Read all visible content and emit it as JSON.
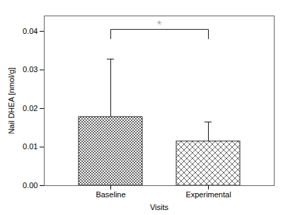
{
  "chart_data": {
    "type": "bar",
    "categories": [
      "Baseline",
      "Experimental"
    ],
    "values": [
      0.0178,
      0.0115
    ],
    "errors_up": [
      0.015,
      0.005
    ],
    "xlabel": "Visits",
    "ylabel": "Nail DHEA [nmol/g]",
    "ylim": [
      0,
      0.044
    ],
    "yticks": [
      {
        "value": 0,
        "label": "0.00"
      },
      0.01,
      0.02,
      0.03,
      0.04
    ],
    "color": "#ffffff",
    "grid": false,
    "annotations": [
      {
        "text": "*",
        "y": 0.0405,
        "color": "#aaaaaa",
        "between": [
          "Baseline",
          "Experimental"
        ]
      }
    ]
  }
}
